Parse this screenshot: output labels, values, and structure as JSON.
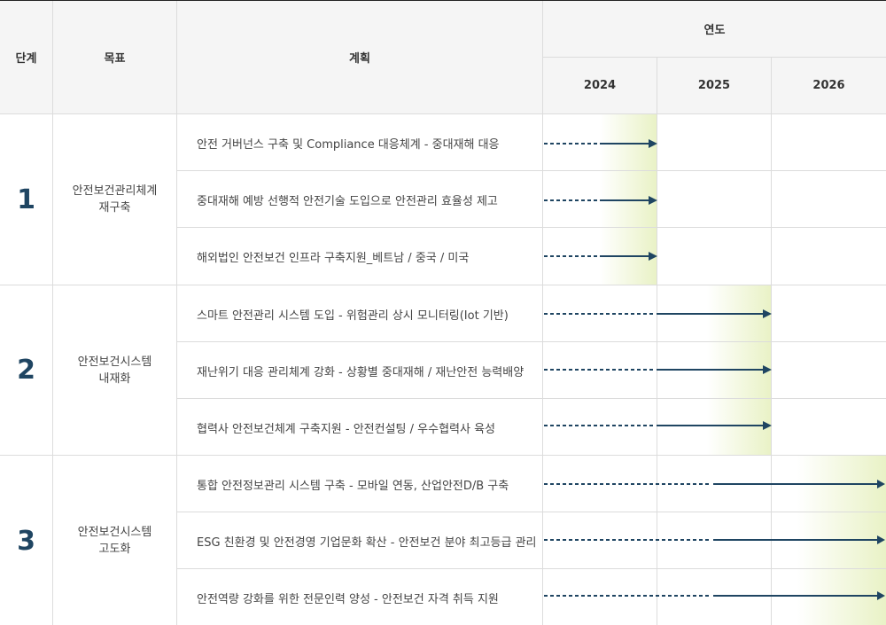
{
  "headers": {
    "stage": "단계",
    "goal": "목표",
    "plan": "계획",
    "year": "연도",
    "years": [
      "2024",
      "2025",
      "2026"
    ]
  },
  "stages": [
    {
      "number": "1",
      "goal": "안전보건관리체계\n재구축",
      "end_year": "2024",
      "plans": [
        "안전 거버넌스 구축 및 Compliance 대응체계 - 중대재해 대응",
        "중대재해 예방 선행적 안전기술 도입으로 안전관리 효율성 제고",
        "해외법인 안전보건 인프라 구축지원_베트남 / 중국 / 미국"
      ]
    },
    {
      "number": "2",
      "goal": "안전보건시스템\n내재화",
      "end_year": "2025",
      "plans": [
        "스마트 안전관리 시스템 도입 - 위험관리 상시 모니터링(Iot 기반)",
        "재난위기 대응 관리체계 강화 - 상황별 중대재해 / 재난안전 능력배양",
        "협력사 안전보건체계 구축지원 - 안전컨설팅 / 우수협력사 육성"
      ]
    },
    {
      "number": "3",
      "goal": "안전보건시스템\n고도화",
      "end_year": "2026",
      "plans": [
        "통합 안전정보관리 시스템 구축 - 모바일 연동, 산업안전D/B 구축",
        "ESG 친환경 및 안전경영 기업문화 확산 - 안전보건 분야 최고등급 관리",
        "안전역량 강화를 위한 전문인력 양성 - 안전보건 자격 취득 지원"
      ]
    }
  ],
  "colors": {
    "arrow": "#1f4562",
    "shade": "#e9f2c6",
    "header_bg": "#f5f5f5",
    "border": "#dcdcdc"
  }
}
